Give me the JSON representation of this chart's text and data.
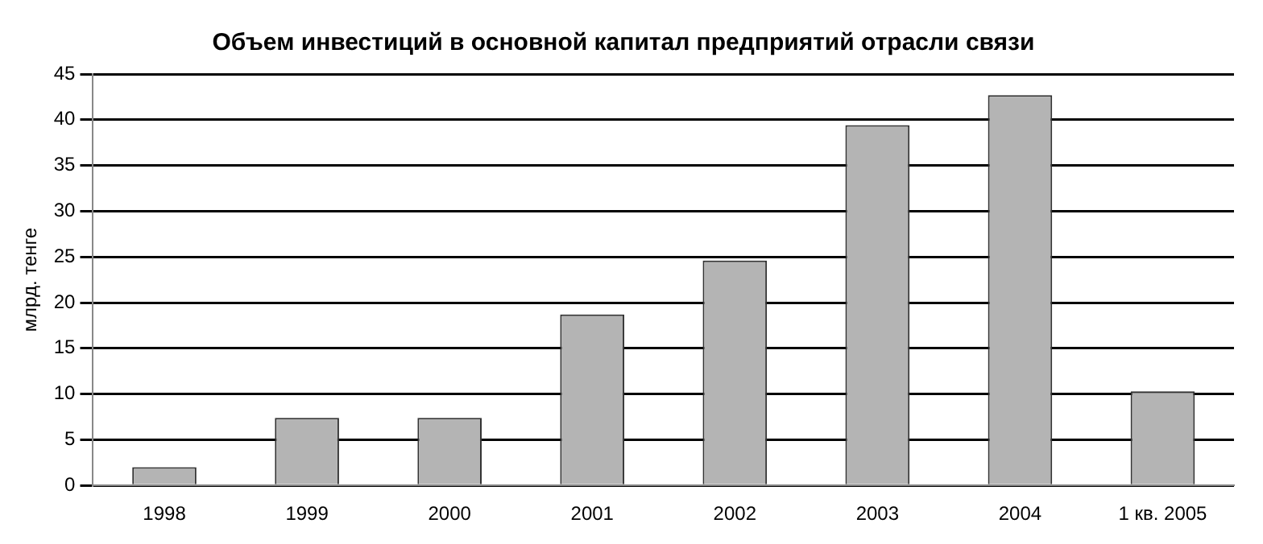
{
  "chart_data": {
    "type": "bar",
    "title": "Объем инвестиций в основной капитал предприятий отрасли связи",
    "ylabel": "млрд. тенге",
    "categories": [
      "1998",
      "1999",
      "2000",
      "2001",
      "2002",
      "2003",
      "2004",
      "1 кв. 2005"
    ],
    "values": [
      2,
      7.4,
      7.4,
      18.7,
      24.6,
      39.4,
      42.7,
      10.3
    ],
    "color": "#b4b4b4",
    "ylim": [
      0,
      45
    ],
    "yticks": [
      0,
      5,
      10,
      15,
      20,
      25,
      30,
      35,
      40,
      45
    ],
    "grid": "y",
    "legend": false
  }
}
